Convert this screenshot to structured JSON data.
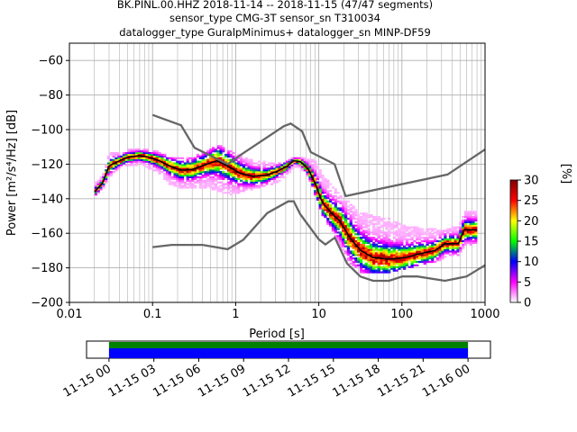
{
  "chart_data": {
    "type": "heatmap",
    "title_lines": [
      "BK.PINL.00.HHZ   2018-11-14 -- 2018-11-15  (47/47 segments)",
      "sensor_type CMG-3T sensor_sn T310034",
      "datalogger_type GuralpMinimus+ datalogger_sn MINP-DF59"
    ],
    "xlabel": "Period [s]",
    "ylabel": "Power [m²/s⁴/Hz] [dB]",
    "x_scale": "log",
    "xlim": [
      0.01,
      1000
    ],
    "ylim": [
      -200,
      -50
    ],
    "x_ticks": [
      {
        "value": 0.01,
        "label": "0.01"
      },
      {
        "value": 0.1,
        "label": "0.1"
      },
      {
        "value": 1,
        "label": "1"
      },
      {
        "value": 10,
        "label": "10"
      },
      {
        "value": 100,
        "label": "100"
      },
      {
        "value": 1000,
        "label": "1000"
      }
    ],
    "y_ticks": [
      {
        "value": -60,
        "label": "−60"
      },
      {
        "value": -80,
        "label": "−80"
      },
      {
        "value": -100,
        "label": "−100"
      },
      {
        "value": -120,
        "label": "−120"
      },
      {
        "value": -140,
        "label": "−140"
      },
      {
        "value": -160,
        "label": "−160"
      },
      {
        "value": -180,
        "label": "−180"
      },
      {
        "value": -200,
        "label": "−200"
      }
    ],
    "grid": true,
    "noise_model_color": "#666666",
    "high_noise_model": [
      [
        0.1,
        -91.5
      ],
      [
        0.22,
        -97.5
      ],
      [
        0.32,
        -110.5
      ],
      [
        0.8,
        -120
      ],
      [
        1.2,
        -114
      ],
      [
        3.8,
        -98
      ],
      [
        4.6,
        -96.5
      ],
      [
        6.3,
        -101
      ],
      [
        8,
        -113
      ],
      [
        15.5,
        -120
      ],
      [
        21,
        -138.5
      ],
      [
        354,
        -126
      ],
      [
        1000,
        -111.5
      ]
    ],
    "low_noise_model": [
      [
        0.1,
        -168
      ],
      [
        0.17,
        -166.7
      ],
      [
        0.4,
        -166.7
      ],
      [
        0.8,
        -169.2
      ],
      [
        1.24,
        -163.7
      ],
      [
        2.4,
        -148.3
      ],
      [
        4.3,
        -141.5
      ],
      [
        5,
        -141.5
      ],
      [
        6,
        -149
      ],
      [
        10,
        -163.5
      ],
      [
        12,
        -166.5
      ],
      [
        15.6,
        -162.5
      ],
      [
        21.9,
        -177.5
      ],
      [
        31.6,
        -185
      ],
      [
        45,
        -187.5
      ],
      [
        70,
        -187.5
      ],
      [
        101,
        -185
      ],
      [
        154,
        -185
      ],
      [
        328,
        -187.5
      ],
      [
        600,
        -185
      ],
      [
        1000,
        -178.5
      ]
    ],
    "median_color": "#000000",
    "median_curve": [
      [
        0.02,
        -136
      ],
      [
        0.025,
        -131
      ],
      [
        0.03,
        -121
      ],
      [
        0.04,
        -118
      ],
      [
        0.05,
        -116
      ],
      [
        0.07,
        -115
      ],
      [
        0.09,
        -116
      ],
      [
        0.12,
        -118
      ],
      [
        0.16,
        -121
      ],
      [
        0.22,
        -123.5
      ],
      [
        0.3,
        -123
      ],
      [
        0.45,
        -120
      ],
      [
        0.6,
        -118
      ],
      [
        0.8,
        -121
      ],
      [
        1.1,
        -125
      ],
      [
        1.6,
        -127
      ],
      [
        2.3,
        -126.5
      ],
      [
        3.2,
        -124
      ],
      [
        4.2,
        -121
      ],
      [
        5,
        -118
      ],
      [
        6,
        -118.5
      ],
      [
        7.5,
        -123
      ],
      [
        9,
        -131
      ],
      [
        11,
        -142
      ],
      [
        14,
        -148
      ],
      [
        18,
        -153
      ],
      [
        24,
        -163
      ],
      [
        32,
        -170
      ],
      [
        45,
        -174
      ],
      [
        70,
        -175
      ],
      [
        110,
        -174
      ],
      [
        160,
        -172
      ],
      [
        250,
        -170
      ],
      [
        330,
        -166
      ],
      [
        480,
        -166
      ],
      [
        560,
        -158
      ],
      [
        800,
        -158
      ]
    ],
    "psd_band": {
      "periods": [
        0.02,
        0.025,
        0.03,
        0.04,
        0.05,
        0.07,
        0.09,
        0.12,
        0.16,
        0.22,
        0.3,
        0.45,
        0.6,
        0.8,
        1.1,
        1.6,
        2.3,
        3.2,
        4.2,
        5,
        6,
        7.5,
        9,
        11,
        14,
        18,
        24,
        32,
        45,
        70,
        110,
        160,
        250,
        330,
        480,
        560,
        800
      ],
      "upper": [
        -131,
        -127,
        -114,
        -113,
        -112,
        -111,
        -112,
        -113,
        -116,
        -117,
        -116,
        -113,
        -109,
        -112,
        -115,
        -118,
        -119,
        -120,
        -118,
        -116,
        -116,
        -117,
        -118,
        -126,
        -132,
        -138,
        -142,
        -148,
        -150,
        -152,
        -156,
        -157,
        -158,
        -158,
        -156,
        -148,
        -147
      ],
      "lower": [
        -138,
        -134,
        -127,
        -122,
        -121,
        -120,
        -122,
        -125,
        -131,
        -134,
        -134,
        -133,
        -135,
        -138,
        -136,
        -134,
        -132,
        -130,
        -126,
        -121,
        -122,
        -127,
        -137,
        -149,
        -157,
        -168,
        -177,
        -182,
        -183,
        -182,
        -180,
        -178,
        -176,
        -174,
        -172,
        -168,
        -166
      ]
    },
    "colorbar": {
      "label": "[%]",
      "min": 0,
      "max": 30,
      "ticks": [
        {
          "value": 0,
          "label": "0"
        },
        {
          "value": 5,
          "label": "5"
        },
        {
          "value": 10,
          "label": "10"
        },
        {
          "value": 15,
          "label": "15"
        },
        {
          "value": 20,
          "label": "20"
        },
        {
          "value": 25,
          "label": "25"
        },
        {
          "value": 30,
          "label": "30"
        }
      ],
      "colors": [
        "#ffffff",
        "#ff00ff",
        "#0000ff",
        "#00ff00",
        "#ffff00",
        "#ff0000",
        "#800000"
      ]
    },
    "time_coverage": {
      "tick_labels": [
        "11-15 00",
        "11-15 03",
        "11-15 06",
        "11-15 09",
        "11-15 12",
        "11-15 15",
        "11-15 18",
        "11-15 21",
        "11-16 00"
      ],
      "range_hours": [
        -1.5,
        25.5
      ],
      "coverage_hours": [
        0,
        24
      ],
      "data_color": "#0000ff",
      "gap_free_color": "#008000"
    }
  }
}
